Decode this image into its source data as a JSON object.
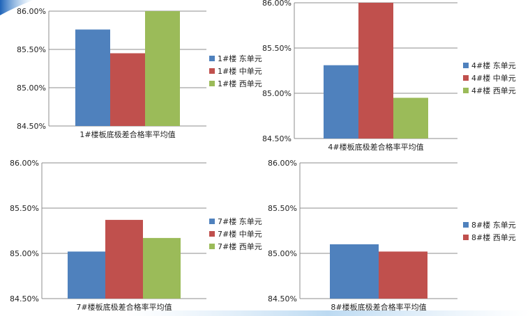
{
  "colors": {
    "blue": "#4f81bd",
    "red": "#c0504d",
    "green": "#9bbb59"
  },
  "chart_data": [
    {
      "type": "bar",
      "xlabel": "1#楼板底极差合格率平均值",
      "ylim": [
        84.5,
        86.0
      ],
      "y_ticks": [
        "84.50%",
        "85.00%",
        "85.50%",
        "86.00%"
      ],
      "grid": true,
      "legend": "right",
      "series": [
        {
          "name": "1#楼 东单元",
          "values": [
            85.76
          ]
        },
        {
          "name": "1#楼 中单元",
          "values": [
            85.45
          ]
        },
        {
          "name": "1#楼 西单元",
          "values": [
            86.0
          ]
        }
      ]
    },
    {
      "type": "bar",
      "xlabel": "4#楼板底极差合格率平均值",
      "ylim": [
        84.5,
        86.0
      ],
      "y_ticks": [
        "84.50%",
        "85.00%",
        "85.50%",
        "86.00%"
      ],
      "grid": true,
      "legend": "right",
      "series": [
        {
          "name": "4#楼 东单元",
          "values": [
            85.31
          ]
        },
        {
          "name": "4#楼 中单元",
          "values": [
            86.0
          ]
        },
        {
          "name": "4#楼 西单元",
          "values": [
            84.95
          ]
        }
      ]
    },
    {
      "type": "bar",
      "xlabel": "7#楼板底极差合格率平均值",
      "ylim": [
        84.5,
        86.0
      ],
      "y_ticks": [
        "84.50%",
        "85.00%",
        "85.50%",
        "86.00%"
      ],
      "grid": true,
      "legend": "right",
      "series": [
        {
          "name": "7#楼 东单元",
          "values": [
            85.02
          ]
        },
        {
          "name": "7#楼 中单元",
          "values": [
            85.37
          ]
        },
        {
          "name": "7#楼 西单元",
          "values": [
            85.17
          ]
        }
      ]
    },
    {
      "type": "bar",
      "xlabel": "8#楼板底极差合格率平均值",
      "ylim": [
        84.5,
        86.0
      ],
      "y_ticks": [
        "84.50%",
        "85.00%",
        "85.50%",
        "86.00%"
      ],
      "grid": true,
      "legend": "right",
      "series": [
        {
          "name": "8#楼 东单元",
          "values": [
            85.1
          ]
        },
        {
          "name": "8#楼 西单元",
          "values": [
            85.02
          ]
        }
      ]
    }
  ]
}
